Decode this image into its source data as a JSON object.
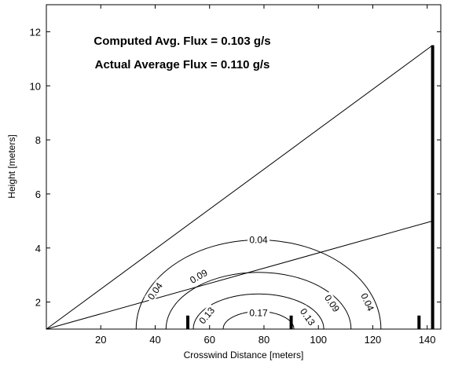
{
  "chart_data": {
    "type": "line",
    "title": "",
    "xlabel": "Crosswind Distance [meters]",
    "ylabel": "Height [meters]",
    "xlim": [
      0,
      145
    ],
    "ylim": [
      1,
      13
    ],
    "x_ticks": [
      20,
      40,
      60,
      80,
      100,
      120,
      140
    ],
    "y_ticks": [
      2,
      4,
      6,
      8,
      10,
      12
    ],
    "grid": false,
    "annotations": [
      "Computed Avg. Flux = 0.103 g/s",
      "Actual Average Flux = 0.110 g/s"
    ],
    "lines": [
      {
        "x": [
          0,
          142
        ],
        "y": [
          1.0,
          11.5
        ]
      },
      {
        "x": [
          0,
          142
        ],
        "y": [
          1.0,
          5.0
        ]
      }
    ],
    "towers": [
      {
        "x": 52,
        "y": [
          1.0,
          1.5
        ]
      },
      {
        "x": 90,
        "y": [
          1.0,
          1.5
        ]
      },
      {
        "x": 137,
        "y": [
          1.0,
          1.5
        ]
      },
      {
        "x": 142,
        "y": [
          1.0,
          11.5
        ]
      }
    ],
    "contours": [
      {
        "level": "0.04",
        "center_x": 78,
        "radius_x": 45,
        "top_y": 4.3
      },
      {
        "level": "0.09",
        "center_x": 78,
        "radius_x": 34,
        "top_y": 3.1
      },
      {
        "level": "0.13",
        "center_x": 78,
        "radius_x": 24,
        "top_y": 2.3
      },
      {
        "level": "0.17",
        "center_x": 78,
        "radius_x": 13,
        "top_y": 1.65
      }
    ],
    "contour_labels": [
      {
        "text": "0.04",
        "x": 78,
        "y": 4.3,
        "angle": 0
      },
      {
        "text": "0.04",
        "x": 40,
        "y": 2.4,
        "angle": -55
      },
      {
        "text": "0.04",
        "x": 118,
        "y": 2.0,
        "angle": 65
      },
      {
        "text": "0.09",
        "x": 56,
        "y": 2.95,
        "angle": -30
      },
      {
        "text": "0.09",
        "x": 105,
        "y": 1.95,
        "angle": 55
      },
      {
        "text": "0.13",
        "x": 59,
        "y": 1.5,
        "angle": -50
      },
      {
        "text": "0.13",
        "x": 96,
        "y": 1.45,
        "angle": 55
      },
      {
        "text": "0.17",
        "x": 78,
        "y": 1.6,
        "angle": 0
      }
    ]
  }
}
